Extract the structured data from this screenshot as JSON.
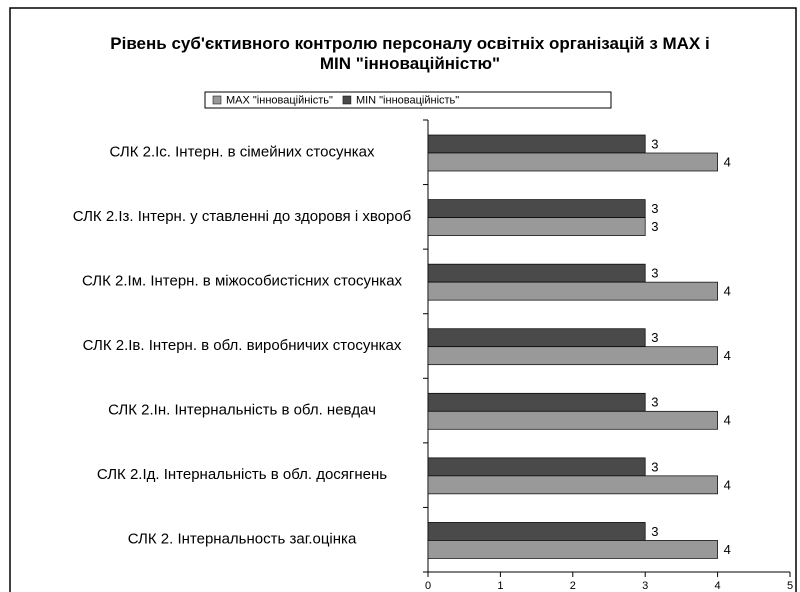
{
  "chart_data": {
    "type": "bar",
    "orientation": "horizontal",
    "title": "Рівень суб'єктивного контролю персоналу освітніх організацій з MAX і MIN \"інноваційністю\"",
    "categories": [
      "СЛК 2.Іс. Інтерн. в сімейних стосунках",
      "СЛК 2.Із. Інтерн. у ставленні до здоровя і хвороб",
      "СЛК 2.Ім. Інтерн. в міжособистісних стосунках",
      "СЛК 2.Ів. Інтерн. в обл. виробничих стосунках",
      "СЛК 2.Ін. Інтернальність в обл. невдач",
      "СЛК 2.Ід. Інтернальність в обл. досягнень",
      "СЛК 2. Інтернальность заг.оцінка"
    ],
    "series": [
      {
        "name": "MAX \"інноваційність\"",
        "color": "#999999",
        "values": [
          4,
          3,
          4,
          4,
          4,
          4,
          4
        ]
      },
      {
        "name": "MIN \"інноваційність\"",
        "color": "#4a4a4a",
        "values": [
          3,
          3,
          3,
          3,
          3,
          3,
          3
        ]
      }
    ],
    "xlim": [
      0,
      5
    ],
    "xticks": [
      0,
      1,
      2,
      3,
      4,
      5
    ],
    "grid": false,
    "legend": "top"
  }
}
